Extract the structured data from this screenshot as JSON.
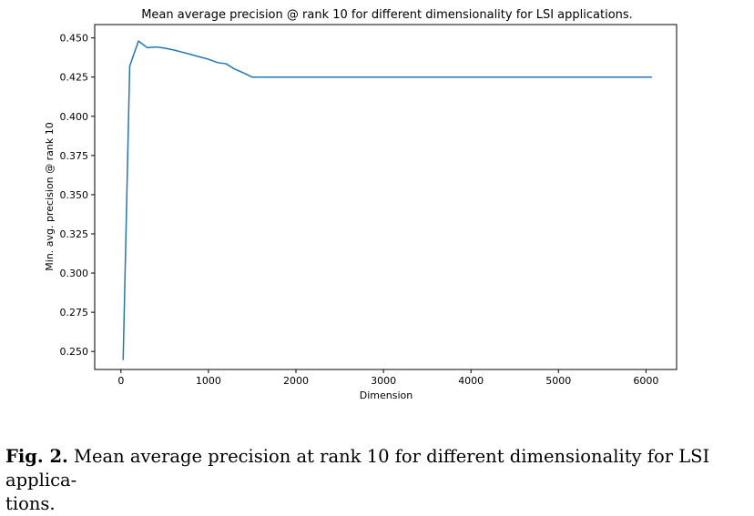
{
  "chart_data": {
    "type": "line",
    "title": "Mean average precision @ rank 10 for different dimensionality for LSI applications.",
    "xlabel": "Dimension",
    "ylabel": "Min. avg. precision @ rank 10",
    "xlim": [
      -300,
      6350
    ],
    "ylim": [
      0.2385,
      0.4585
    ],
    "x_ticks": [
      0,
      1000,
      2000,
      3000,
      4000,
      5000,
      6000
    ],
    "x_tick_labels": [
      "0",
      "1000",
      "2000",
      "3000",
      "4000",
      "5000",
      "6000"
    ],
    "y_ticks": [
      0.25,
      0.275,
      0.3,
      0.325,
      0.35,
      0.375,
      0.4,
      0.425,
      0.45
    ],
    "y_tick_labels": [
      "0.250",
      "0.275",
      "0.300",
      "0.325",
      "0.350",
      "0.375",
      "0.400",
      "0.425",
      "0.450"
    ],
    "grid": false,
    "series": [
      {
        "color": "#1f77b4",
        "x": [
          25,
          100,
          200,
          300,
          400,
          500,
          600,
          700,
          800,
          900,
          1000,
          1100,
          1200,
          1300,
          1400,
          1500,
          2000,
          3000,
          4000,
          5000,
          6000,
          6068
        ],
        "y": [
          0.2445,
          0.432,
          0.448,
          0.4438,
          0.4442,
          0.4435,
          0.4423,
          0.4409,
          0.4394,
          0.4379,
          0.4364,
          0.4343,
          0.4335,
          0.4301,
          0.4277,
          0.425,
          0.425,
          0.425,
          0.425,
          0.425,
          0.425,
          0.425
        ]
      }
    ]
  },
  "caption": {
    "label": "Fig. 2.",
    "line1": " Mean average precision at rank 10 for different dimensionality for LSI applica-",
    "line2": "tions."
  }
}
